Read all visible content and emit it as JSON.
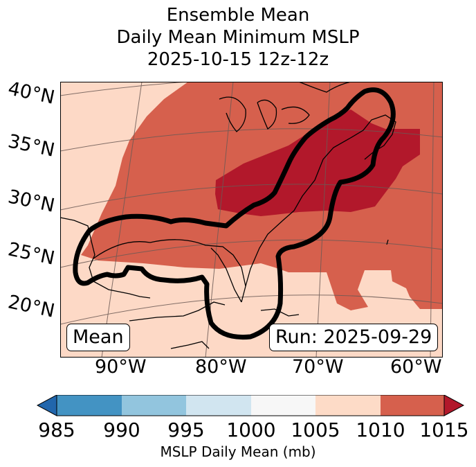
{
  "title": {
    "line1": "Ensemble Mean",
    "line2": "Daily Mean Minimum MSLP",
    "line3": "2025-10-15 12z-12z"
  },
  "map": {
    "lat_labels": [
      "40°N",
      "35°N",
      "30°N",
      "25°N",
      "20°N"
    ],
    "lon_labels": [
      "90°W",
      "80°W",
      "70°W",
      "60°W"
    ],
    "mean_label": "Mean",
    "run_label": "Run: 2025-09-29",
    "fill_colors": {
      "1005_1010": "#fdd9c6",
      "1010_1015": "#d6604d",
      "above_1015": "#b2182b"
    }
  },
  "colorbar": {
    "ticks": [
      "985",
      "990",
      "995",
      "1000",
      "1005",
      "1010",
      "1015"
    ],
    "colors": [
      "#2166ac",
      "#4393c3",
      "#92c5de",
      "#d1e5f0",
      "#f7f7f7",
      "#fddbc7",
      "#d6604d",
      "#b2182b"
    ],
    "label": "MSLP Daily Mean (mb)"
  }
}
